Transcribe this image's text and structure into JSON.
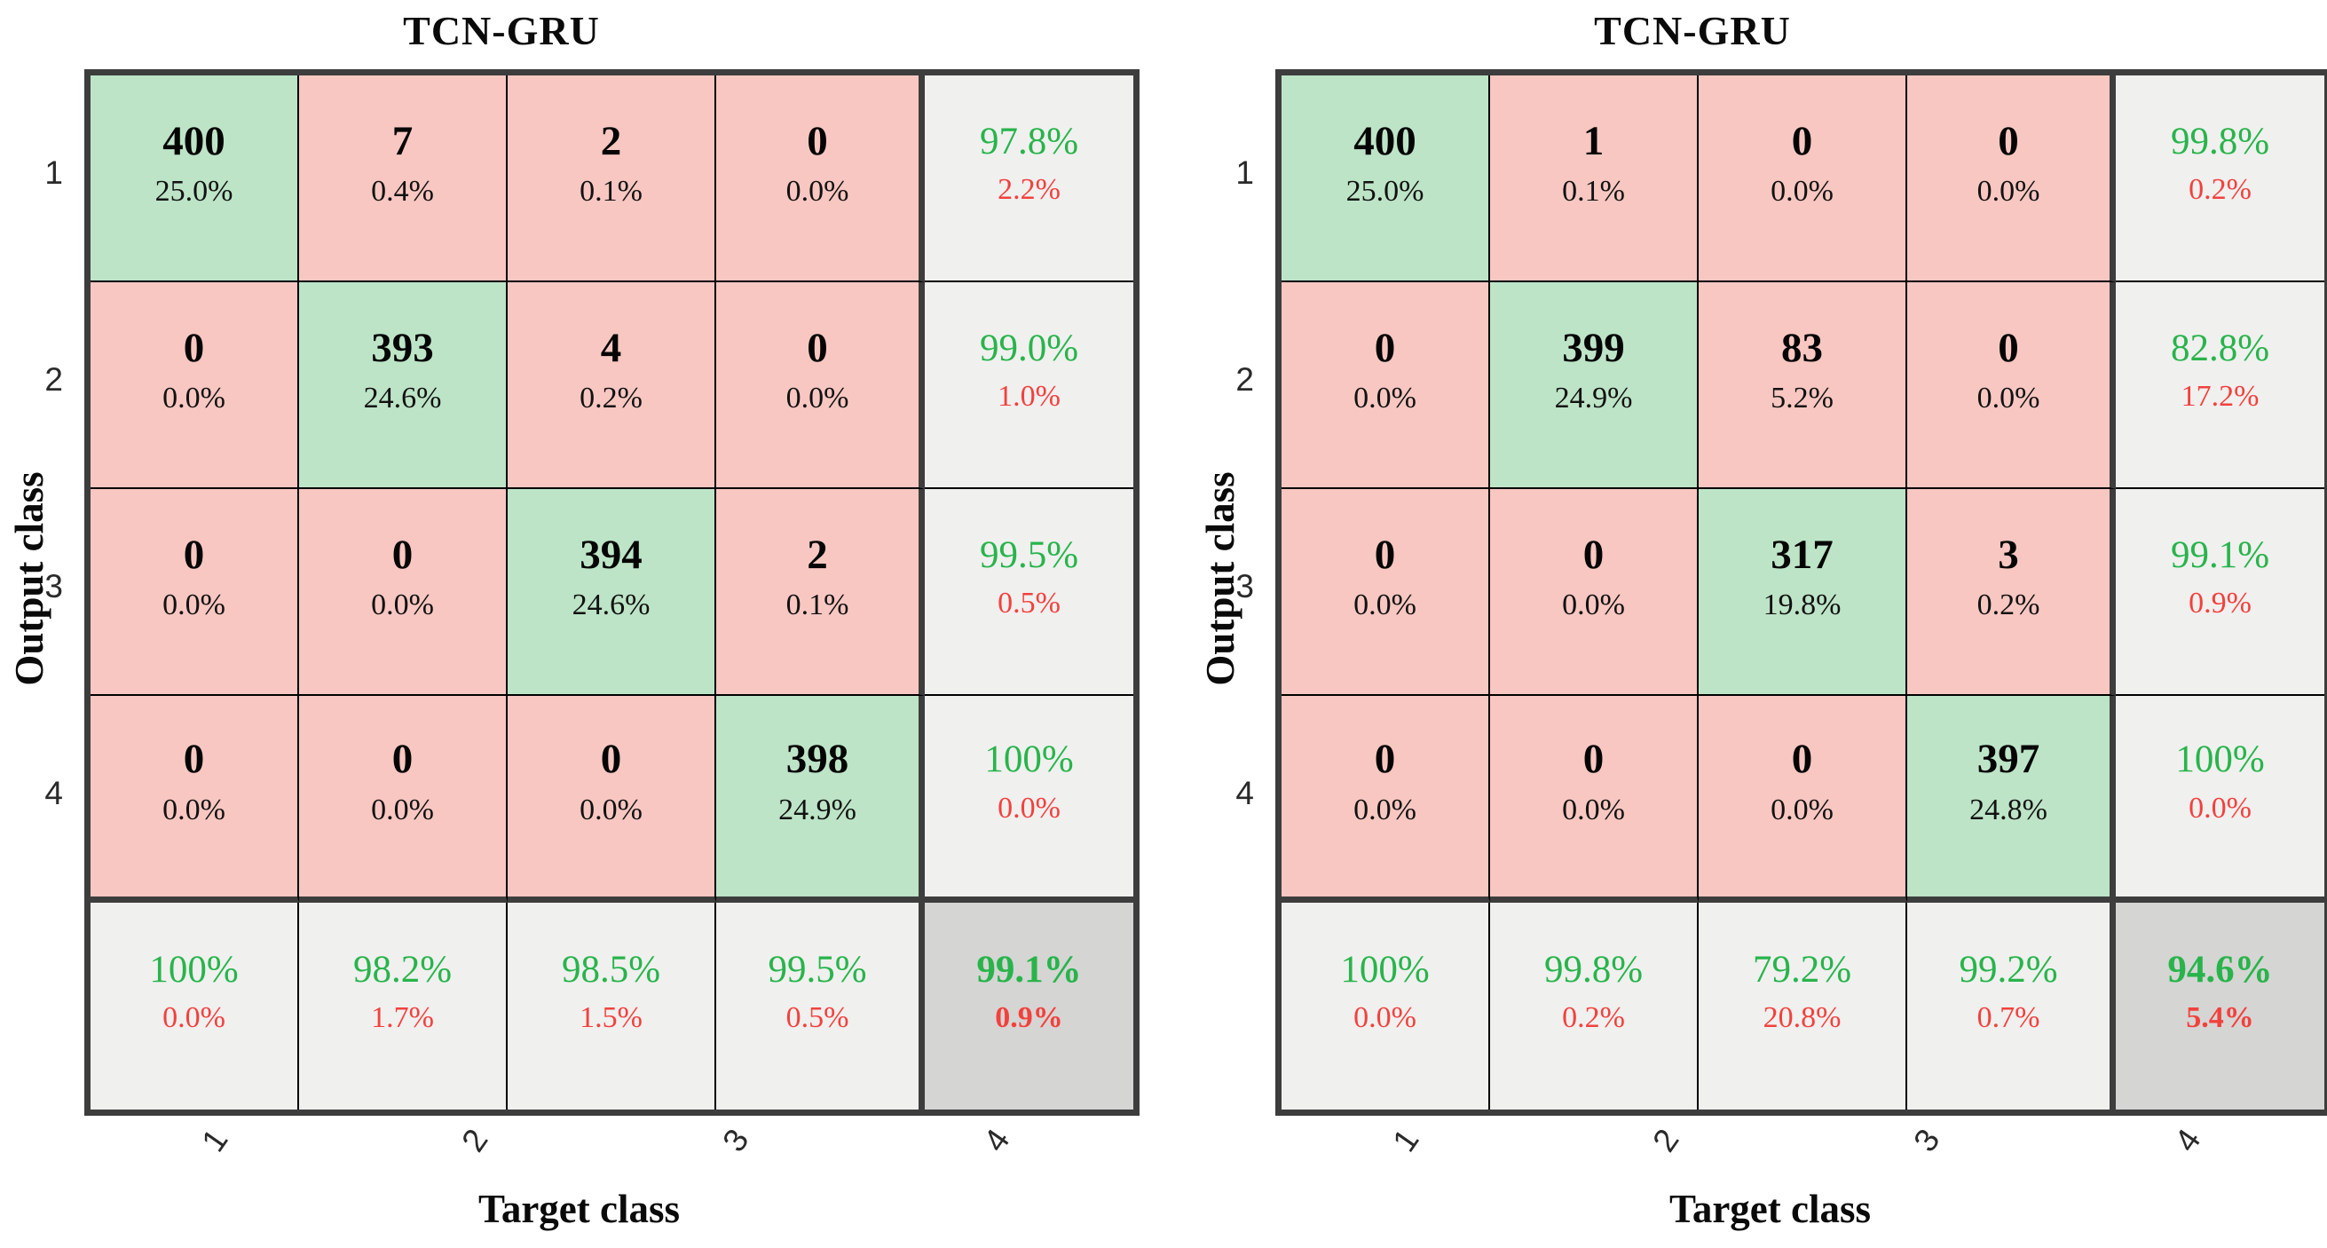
{
  "figure_type": "confusion-matrix-pair",
  "colors": {
    "pink_cell": "#f8c7c1",
    "green_cell": "#bde4c7",
    "summary_bg": "#f0f0ef",
    "total_bg": "#d5d5d4",
    "good_text_green": "#28b44b",
    "bad_text_red": "#f2413d",
    "thick_border": "#3d3d3d",
    "thin_border": "#000000"
  },
  "panels": [
    {
      "title": "TCN-GRU",
      "x_axis_label": "Target class",
      "y_axis_label": "Output class",
      "x_tick_labels": [
        "1",
        "2",
        "3",
        "4"
      ],
      "y_tick_labels": [
        "1",
        "2",
        "3",
        "4"
      ],
      "cells": [
        [
          {
            "count": "400",
            "pct": "25.0%"
          },
          {
            "count": "7",
            "pct": "0.4%"
          },
          {
            "count": "2",
            "pct": "0.1%"
          },
          {
            "count": "0",
            "pct": "0.0%"
          }
        ],
        [
          {
            "count": "0",
            "pct": "0.0%"
          },
          {
            "count": "393",
            "pct": "24.6%"
          },
          {
            "count": "4",
            "pct": "0.2%"
          },
          {
            "count": "0",
            "pct": "0.0%"
          }
        ],
        [
          {
            "count": "0",
            "pct": "0.0%"
          },
          {
            "count": "0",
            "pct": "0.0%"
          },
          {
            "count": "394",
            "pct": "24.6%"
          },
          {
            "count": "2",
            "pct": "0.1%"
          }
        ],
        [
          {
            "count": "0",
            "pct": "0.0%"
          },
          {
            "count": "0",
            "pct": "0.0%"
          },
          {
            "count": "0",
            "pct": "0.0%"
          },
          {
            "count": "398",
            "pct": "24.9%"
          }
        ]
      ],
      "row_summaries": [
        {
          "main": "97.8%",
          "sub": "2.2%"
        },
        {
          "main": "99.0%",
          "sub": "1.0%"
        },
        {
          "main": "99.5%",
          "sub": "0.5%"
        },
        {
          "main": "100%",
          "sub": "0.0%"
        }
      ],
      "col_summaries": [
        {
          "main": "100%",
          "sub": "0.0%"
        },
        {
          "main": "98.2%",
          "sub": "1.7%"
        },
        {
          "main": "98.5%",
          "sub": "1.5%"
        },
        {
          "main": "99.5%",
          "sub": "0.5%"
        }
      ],
      "overall": {
        "main": "99.1%",
        "sub": "0.9%"
      }
    },
    {
      "title": "TCN-GRU",
      "x_axis_label": "Target class",
      "y_axis_label": "Output class",
      "x_tick_labels": [
        "1",
        "2",
        "3",
        "4"
      ],
      "y_tick_labels": [
        "1",
        "2",
        "3",
        "4"
      ],
      "cells": [
        [
          {
            "count": "400",
            "pct": "25.0%"
          },
          {
            "count": "1",
            "pct": "0.1%"
          },
          {
            "count": "0",
            "pct": "0.0%"
          },
          {
            "count": "0",
            "pct": "0.0%"
          }
        ],
        [
          {
            "count": "0",
            "pct": "0.0%"
          },
          {
            "count": "399",
            "pct": "24.9%"
          },
          {
            "count": "83",
            "pct": "5.2%"
          },
          {
            "count": "0",
            "pct": "0.0%"
          }
        ],
        [
          {
            "count": "0",
            "pct": "0.0%"
          },
          {
            "count": "0",
            "pct": "0.0%"
          },
          {
            "count": "317",
            "pct": "19.8%"
          },
          {
            "count": "3",
            "pct": "0.2%"
          }
        ],
        [
          {
            "count": "0",
            "pct": "0.0%"
          },
          {
            "count": "0",
            "pct": "0.0%"
          },
          {
            "count": "0",
            "pct": "0.0%"
          },
          {
            "count": "397",
            "pct": "24.8%"
          }
        ]
      ],
      "row_summaries": [
        {
          "main": "99.8%",
          "sub": "0.2%"
        },
        {
          "main": "82.8%",
          "sub": "17.2%"
        },
        {
          "main": "99.1%",
          "sub": "0.9%"
        },
        {
          "main": "100%",
          "sub": "0.0%"
        }
      ],
      "col_summaries": [
        {
          "main": "100%",
          "sub": "0.0%"
        },
        {
          "main": "99.8%",
          "sub": "0.2%"
        },
        {
          "main": "79.2%",
          "sub": "20.8%"
        },
        {
          "main": "99.2%",
          "sub": "0.7%"
        }
      ],
      "overall": {
        "main": "94.6%",
        "sub": "5.4%"
      }
    }
  ],
  "chart_data": [
    {
      "type": "heatmap",
      "subtype": "confusion-matrix",
      "title": "TCN-GRU",
      "xlabel": "Target class",
      "ylabel": "Output class",
      "classes": [
        "1",
        "2",
        "3",
        "4"
      ],
      "matrix_counts": [
        [
          400,
          7,
          2,
          0
        ],
        [
          0,
          393,
          4,
          0
        ],
        [
          0,
          0,
          394,
          2
        ],
        [
          0,
          0,
          0,
          398
        ]
      ],
      "matrix_pct_of_total": [
        [
          25.0,
          0.4,
          0.1,
          0.0
        ],
        [
          0.0,
          24.6,
          0.2,
          0.0
        ],
        [
          0.0,
          0.0,
          24.6,
          0.1
        ],
        [
          0.0,
          0.0,
          0.0,
          24.9
        ]
      ],
      "row_precision_pct": [
        97.8,
        99.0,
        99.5,
        100
      ],
      "row_error_pct": [
        2.2,
        1.0,
        0.5,
        0.0
      ],
      "col_recall_pct": [
        100,
        98.2,
        98.5,
        99.5
      ],
      "col_error_pct": [
        0.0,
        1.7,
        1.5,
        0.5
      ],
      "overall_accuracy_pct": 99.1,
      "overall_error_pct": 0.9
    },
    {
      "type": "heatmap",
      "subtype": "confusion-matrix",
      "title": "TCN-GRU",
      "xlabel": "Target class",
      "ylabel": "Output class",
      "classes": [
        "1",
        "2",
        "3",
        "4"
      ],
      "matrix_counts": [
        [
          400,
          1,
          0,
          0
        ],
        [
          0,
          399,
          83,
          0
        ],
        [
          0,
          0,
          317,
          3
        ],
        [
          0,
          0,
          0,
          397
        ]
      ],
      "matrix_pct_of_total": [
        [
          25.0,
          0.1,
          0.0,
          0.0
        ],
        [
          0.0,
          24.9,
          5.2,
          0.0
        ],
        [
          0.0,
          0.0,
          19.8,
          0.2
        ],
        [
          0.0,
          0.0,
          0.0,
          24.8
        ]
      ],
      "row_precision_pct": [
        99.8,
        82.8,
        99.1,
        100
      ],
      "row_error_pct": [
        0.2,
        17.2,
        0.9,
        0.0
      ],
      "col_recall_pct": [
        100,
        99.8,
        79.2,
        99.2
      ],
      "col_error_pct": [
        0.0,
        0.2,
        20.8,
        0.7
      ],
      "overall_accuracy_pct": 94.6,
      "overall_error_pct": 5.4
    }
  ]
}
